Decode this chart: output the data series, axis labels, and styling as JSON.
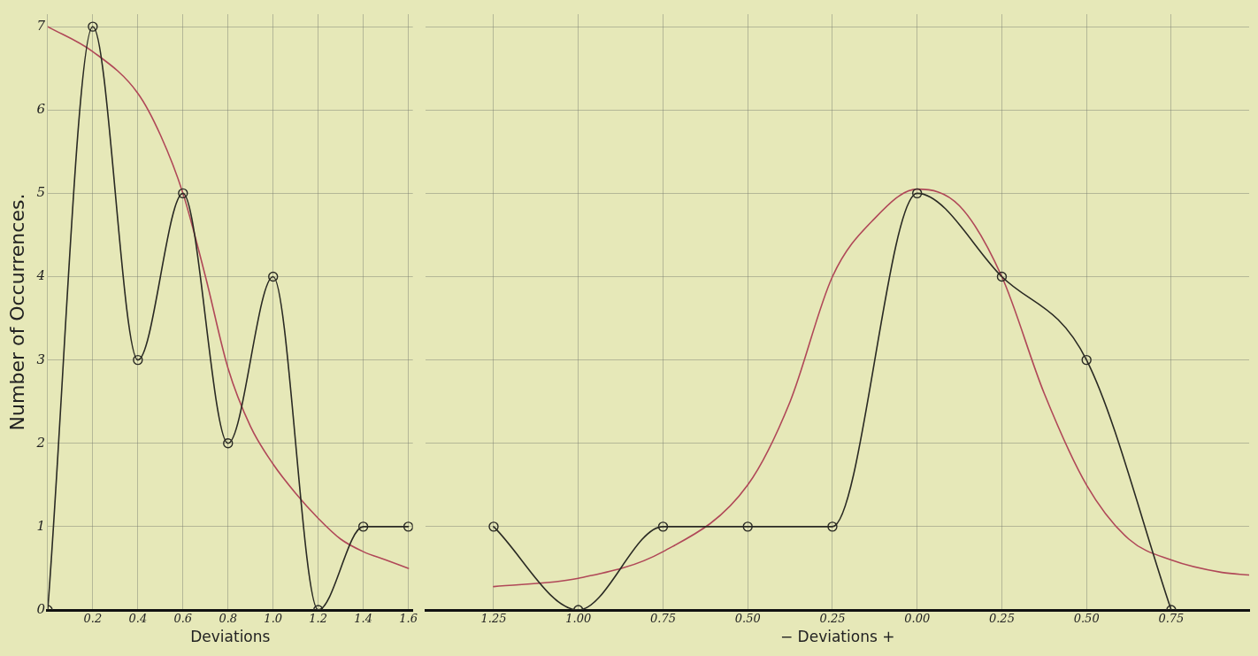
{
  "chart_data": [
    {
      "type": "line",
      "xlabel": "Deviations",
      "ylabel": "Number of Occurrences.",
      "xlim": [
        0,
        1.62
      ],
      "ylim": [
        0,
        7.15
      ],
      "xticks": [
        {
          "value": 0,
          "label": null
        },
        {
          "value": 0.2,
          "label": "0.2"
        },
        {
          "value": 0.4,
          "label": "0.4"
        },
        {
          "value": 0.6,
          "label": "0.6"
        },
        {
          "value": 0.8,
          "label": "0.8"
        },
        {
          "value": 1.0,
          "label": "1.0"
        },
        {
          "value": 1.2,
          "label": "1.2"
        },
        {
          "value": 1.4,
          "label": "1.4"
        },
        {
          "value": 1.6,
          "label": "1.6"
        }
      ],
      "yticks": [
        0,
        1,
        2,
        3,
        4,
        5,
        6,
        7
      ],
      "grid": true,
      "legend": false,
      "series": [
        {
          "color": "#2a2a24",
          "marker": "circle",
          "x": [
            0,
            0.2,
            0.4,
            0.6,
            0.8,
            1.0,
            1.2,
            1.4,
            1.6
          ],
          "values": [
            0,
            7,
            3,
            5,
            2,
            4,
            0,
            1,
            1
          ]
        },
        {
          "color": "#b04858",
          "marker": "none",
          "x": [
            0,
            0.2,
            0.4,
            0.5,
            0.6,
            0.7,
            0.8,
            0.9,
            1.0,
            1.1,
            1.2,
            1.3,
            1.4,
            1.5,
            1.6
          ],
          "values": [
            7.0,
            6.7,
            6.2,
            5.7,
            5.0,
            4.0,
            2.9,
            2.2,
            1.75,
            1.4,
            1.1,
            0.85,
            0.7,
            0.6,
            0.5
          ]
        }
      ]
    },
    {
      "type": "line",
      "xlabel": "− Deviations +",
      "xlim": [
        -1.45,
        0.98
      ],
      "ylim": [
        0,
        7.15
      ],
      "xticks": [
        {
          "value": -1.25,
          "label": "1.25"
        },
        {
          "value": -1.0,
          "label": "1.00"
        },
        {
          "value": -0.75,
          "label": "0.75"
        },
        {
          "value": -0.5,
          "label": "0.50"
        },
        {
          "value": -0.25,
          "label": "0.25"
        },
        {
          "value": 0,
          "label": "0.00"
        },
        {
          "value": 0.25,
          "label": "0.25"
        },
        {
          "value": 0.5,
          "label": "0.50"
        },
        {
          "value": 0.75,
          "label": "0.75"
        }
      ],
      "yticks": [
        0,
        1,
        2,
        3,
        4,
        5,
        6,
        7
      ],
      "tick_labels": "x",
      "grid": true,
      "legend": false,
      "series": [
        {
          "color": "#2a2a24",
          "marker": "circle",
          "x": [
            -1.25,
            -1.0,
            -0.75,
            -0.5,
            -0.25,
            0,
            0.25,
            0.5,
            0.75
          ],
          "values": [
            1,
            0,
            1,
            1,
            1,
            5,
            4,
            3,
            0
          ]
        },
        {
          "color": "#b04858",
          "marker": "none",
          "x": [
            -1.25,
            -1.0,
            -0.75,
            -0.5,
            -0.375,
            -0.25,
            -0.125,
            0,
            0.125,
            0.25,
            0.375,
            0.5,
            0.625,
            0.75,
            0.9,
            0.98
          ],
          "values": [
            0.28,
            0.38,
            0.7,
            1.5,
            2.5,
            4.0,
            4.7,
            5.05,
            4.85,
            4.0,
            2.6,
            1.5,
            0.85,
            0.6,
            0.45,
            0.42
          ]
        }
      ]
    }
  ]
}
